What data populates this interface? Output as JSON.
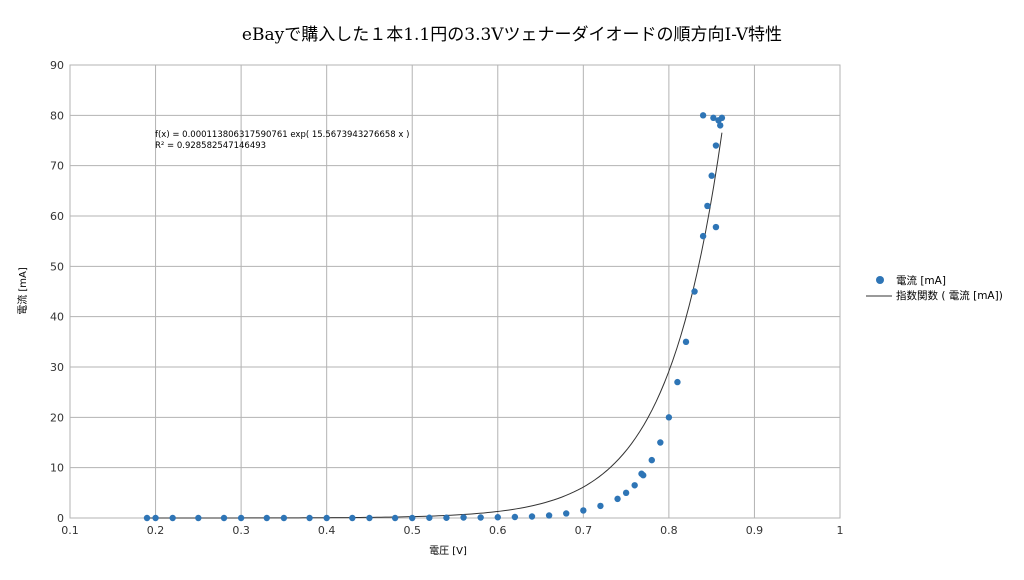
{
  "chart_data": {
    "type": "scatter",
    "title": "eBayで購入した１本1.1円の3.3Vツェナーダイオードの順方向I-V特性",
    "xlabel": "電圧 [V]",
    "ylabel": "電流 [mA]",
    "xlim": [
      0.1,
      1
    ],
    "ylim": [
      0,
      90
    ],
    "xticks": [
      "0.1",
      "0.2",
      "0.3",
      "0.4",
      "0.5",
      "0.6",
      "0.7",
      "0.8",
      "0.9",
      "1"
    ],
    "yticks": [
      "0",
      "10",
      "20",
      "30",
      "40",
      "50",
      "60",
      "70",
      "80",
      "90"
    ],
    "grid": true,
    "legend_position": "right",
    "series": [
      {
        "name": "電流 [mA]",
        "color": "#2e75b6",
        "marker": "circle",
        "points": [
          [
            0.19,
            0.0
          ],
          [
            0.2,
            0.0
          ],
          [
            0.22,
            0.0
          ],
          [
            0.25,
            0.0
          ],
          [
            0.28,
            0.0
          ],
          [
            0.3,
            0.0
          ],
          [
            0.33,
            0.0
          ],
          [
            0.35,
            0.0
          ],
          [
            0.38,
            0.0
          ],
          [
            0.4,
            0.0
          ],
          [
            0.43,
            0.0
          ],
          [
            0.45,
            0.0
          ],
          [
            0.48,
            0.0
          ],
          [
            0.5,
            0.0
          ],
          [
            0.52,
            0.05
          ],
          [
            0.54,
            0.05
          ],
          [
            0.56,
            0.1
          ],
          [
            0.58,
            0.1
          ],
          [
            0.6,
            0.15
          ],
          [
            0.62,
            0.2
          ],
          [
            0.64,
            0.3
          ],
          [
            0.66,
            0.5
          ],
          [
            0.68,
            0.9
          ],
          [
            0.7,
            1.5
          ],
          [
            0.72,
            2.4
          ],
          [
            0.74,
            3.8
          ],
          [
            0.75,
            5.0
          ],
          [
            0.76,
            6.5
          ],
          [
            0.77,
            8.5
          ],
          [
            0.78,
            11.5
          ],
          [
            0.79,
            15.0
          ],
          [
            0.8,
            20.0
          ],
          [
            0.81,
            27.0
          ],
          [
            0.82,
            35.0
          ],
          [
            0.83,
            45.0
          ],
          [
            0.84,
            56.0
          ],
          [
            0.845,
            62.0
          ],
          [
            0.85,
            68.0
          ],
          [
            0.855,
            74.0
          ],
          [
            0.86,
            78.0
          ],
          [
            0.862,
            79.5
          ],
          [
            0.858,
            79.0
          ],
          [
            0.852,
            79.5
          ],
          [
            0.84,
            80.0
          ],
          [
            0.855,
            57.8
          ],
          [
            0.768,
            8.8
          ]
        ]
      },
      {
        "name": "指数関数 ( 電流 [mA])",
        "color": "#333333",
        "line": true,
        "function": "0.000113806317590761*exp(15.5673943276658*x)",
        "x_range": [
          0.19,
          0.862
        ]
      }
    ],
    "trendline_annotation": {
      "equation": "f(x) = 0.000113806317590761 exp( 15.5673943276658 x )",
      "r_squared": "R² = 0.928582547146493"
    }
  }
}
